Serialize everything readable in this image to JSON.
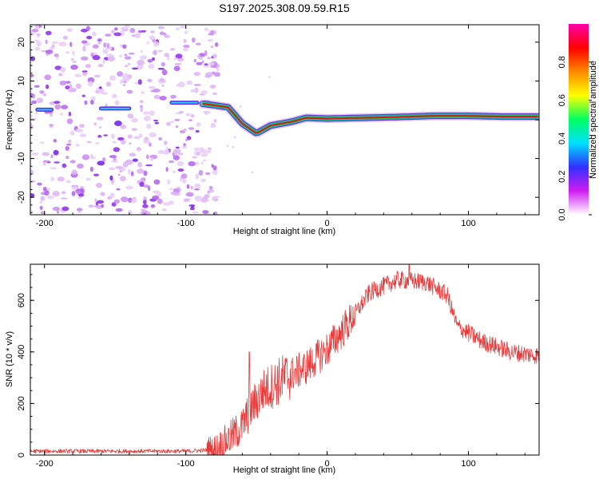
{
  "title": "S197.2025.308.09.59.R15",
  "chart_data": [
    {
      "type": "heatmap",
      "xlabel": "Height of straight line (km)",
      "ylabel": "Frequency (Hz)",
      "xlim": [
        -210,
        150
      ],
      "ylim": [
        -24.5,
        24.5
      ],
      "xticks": [
        -200,
        -100,
        0,
        100
      ],
      "yticks": [
        -20,
        -10,
        0,
        10,
        20
      ],
      "colorbar": {
        "label": "Normalized spectral amplitude",
        "range": [
          0,
          1
        ],
        "ticks": [
          0,
          0.2,
          0.4,
          0.6,
          0.8
        ],
        "tick_labels": [
          "0.0",
          "0.2",
          "0.4",
          "0.6",
          "0.8"
        ],
        "stops": [
          "#ffffff",
          "#d01cf0",
          "#3030ff",
          "#00e0ff",
          "#00ff60",
          "#ffff00",
          "#ff8800",
          "#ff0000",
          "#ff00aa"
        ]
      },
      "noise_region_km": [
        -210,
        -85
      ],
      "signal_ridge": [
        {
          "x": -210,
          "y": 2.5
        },
        {
          "x": -190,
          "y": 2.5
        },
        {
          "x": -150,
          "y": 3.0
        },
        {
          "x": -100,
          "y": 4.5
        },
        {
          "x": -85,
          "y": 4.0
        },
        {
          "x": -70,
          "y": 3.2
        },
        {
          "x": -60,
          "y": -1.0
        },
        {
          "x": -50,
          "y": -3.5
        },
        {
          "x": -40,
          "y": -1.5
        },
        {
          "x": -25,
          "y": -0.5
        },
        {
          "x": -15,
          "y": 0.5
        },
        {
          "x": 0,
          "y": 0.3
        },
        {
          "x": 25,
          "y": 0.5
        },
        {
          "x": 50,
          "y": 0.7
        },
        {
          "x": 75,
          "y": 1.0
        },
        {
          "x": 100,
          "y": 1.0
        },
        {
          "x": 125,
          "y": 0.8
        },
        {
          "x": 150,
          "y": 0.8
        }
      ]
    },
    {
      "type": "line",
      "xlabel": "Height of straight line (km)",
      "ylabel": "SNR (10 * v/v)",
      "xlim": [
        -210,
        150
      ],
      "ylim": [
        0,
        740
      ],
      "xticks": [
        -200,
        -100,
        0,
        100
      ],
      "yticks": [
        0,
        200,
        400,
        600
      ],
      "series": [
        {
          "name": "SNR",
          "color": "#e83a3a",
          "envelope": [
            {
              "x": -210,
              "y": 15
            },
            {
              "x": -150,
              "y": 15
            },
            {
              "x": -100,
              "y": 15
            },
            {
              "x": -80,
              "y": 20
            },
            {
              "x": -70,
              "y": 60
            },
            {
              "x": -60,
              "y": 110
            },
            {
              "x": -55,
              "y": 170
            },
            {
              "x": -45,
              "y": 250
            },
            {
              "x": -30,
              "y": 300
            },
            {
              "x": -15,
              "y": 340
            },
            {
              "x": 0,
              "y": 410
            },
            {
              "x": 15,
              "y": 510
            },
            {
              "x": 30,
              "y": 630
            },
            {
              "x": 50,
              "y": 680
            },
            {
              "x": 70,
              "y": 670
            },
            {
              "x": 85,
              "y": 620
            },
            {
              "x": 92,
              "y": 500
            },
            {
              "x": 110,
              "y": 440
            },
            {
              "x": 130,
              "y": 400
            },
            {
              "x": 150,
              "y": 385
            }
          ],
          "spikes": [
            {
              "x": -55,
              "y": 400
            },
            {
              "x": 58,
              "y": 738
            }
          ]
        }
      ]
    }
  ]
}
